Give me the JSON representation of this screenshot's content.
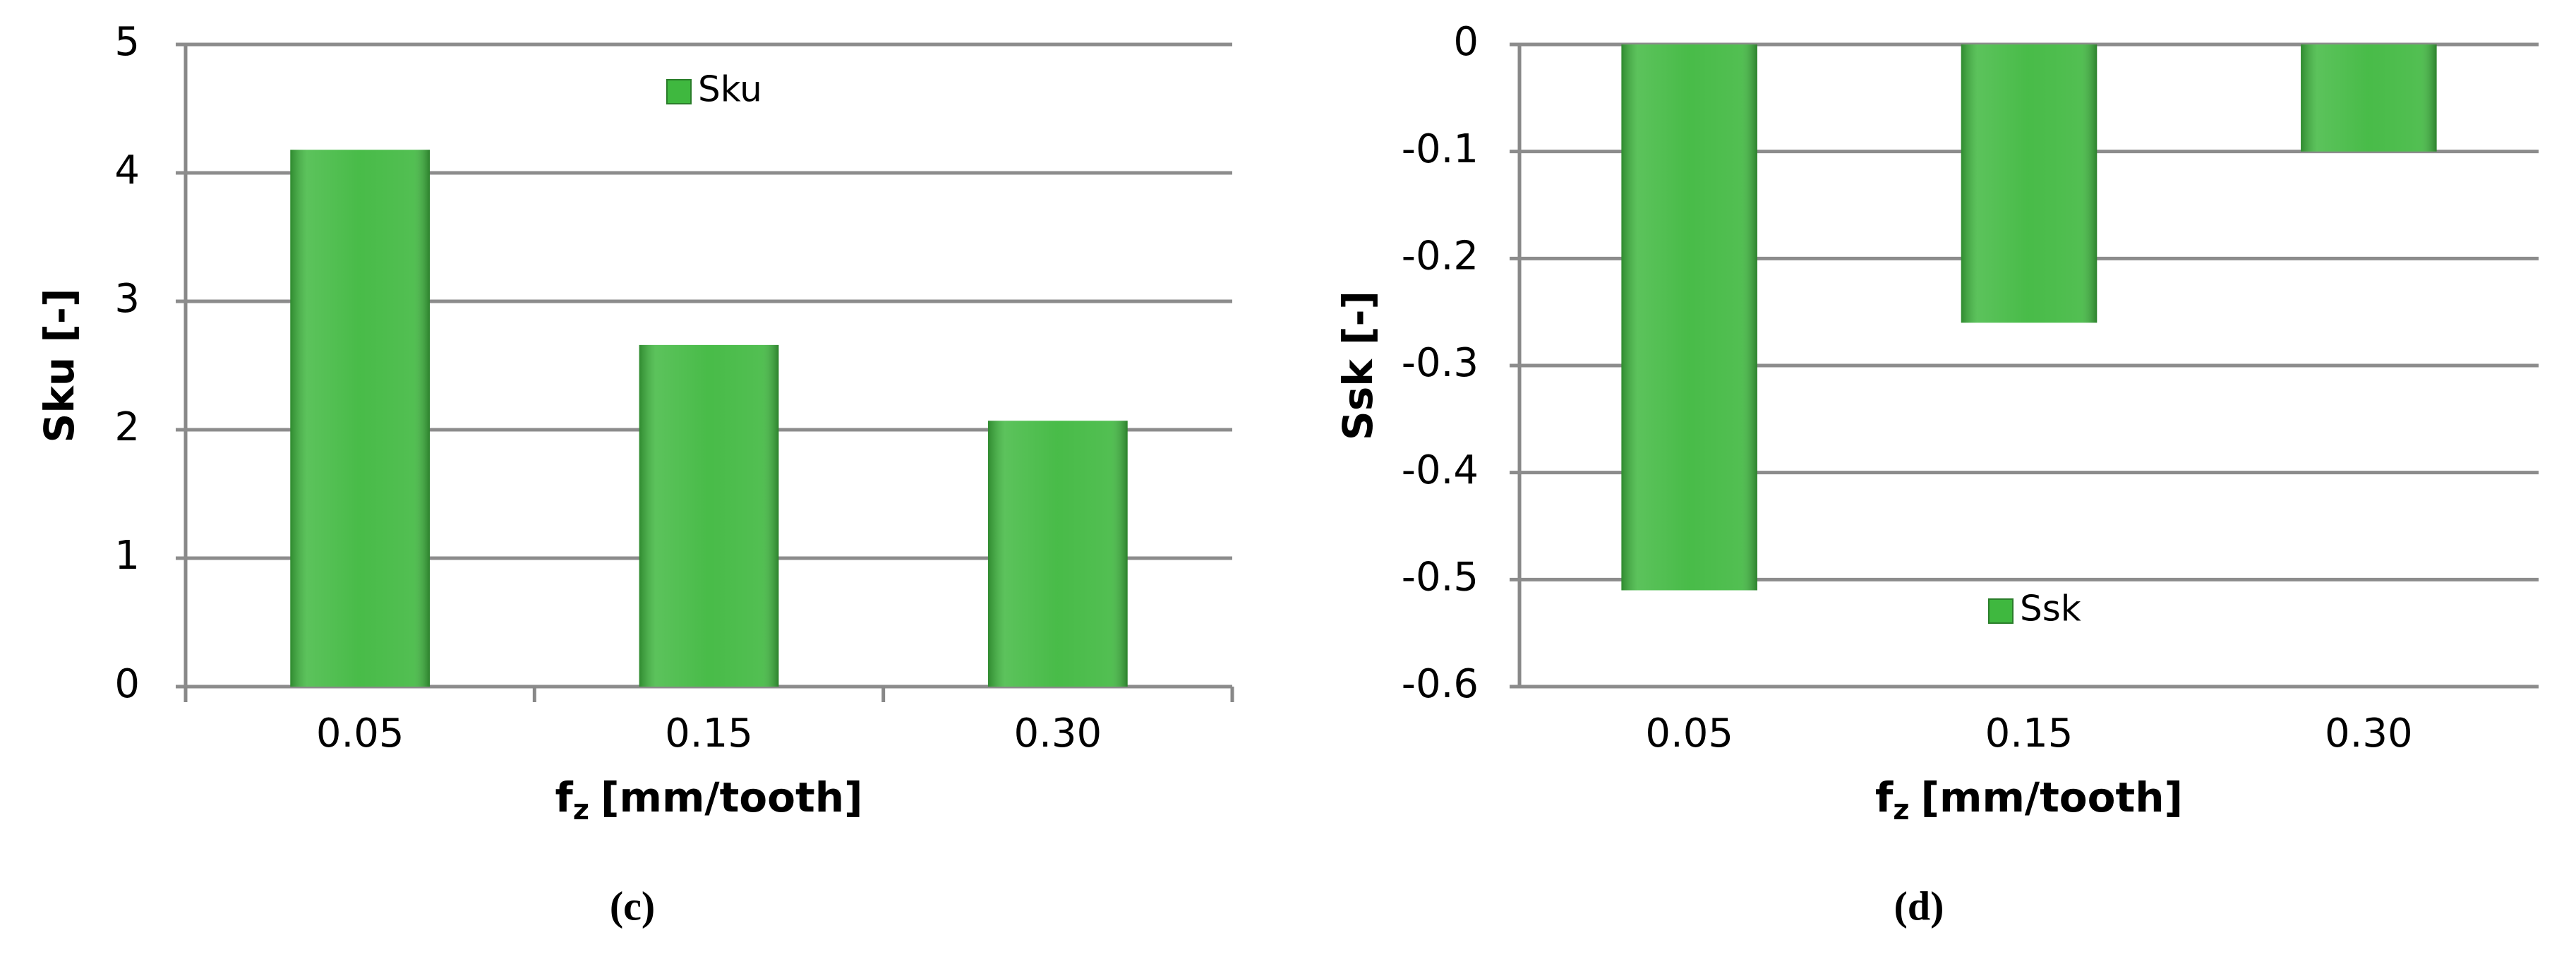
{
  "chart_data": [
    {
      "type": "bar",
      "label": "(c)",
      "y_label": "Sku [-]",
      "x_label": {
        "base": "f",
        "subscript": "z",
        "rest": "[mm/tooth]"
      },
      "categories": [
        "0.05",
        "0.15",
        "0.30"
      ],
      "series": [
        {
          "name": "Sku",
          "color": "#3fb83f",
          "values": [
            4.18,
            2.66,
            2.07
          ]
        }
      ],
      "ylim": [
        0,
        5
      ],
      "yticks": [
        0,
        1,
        2,
        3,
        4,
        5
      ],
      "grid": true
    },
    {
      "type": "bar",
      "label": "(d)",
      "y_label": "Ssk [-]",
      "x_label": {
        "base": "f",
        "subscript": "z",
        "rest": "[mm/tooth]"
      },
      "categories": [
        "0.05",
        "0.15",
        "0.30"
      ],
      "series": [
        {
          "name": "Ssk",
          "color": "#3fb83f",
          "values": [
            -0.51,
            -0.26,
            -0.1
          ]
        }
      ],
      "ylim": [
        -0.6,
        0
      ],
      "yticks": [
        -0.6,
        -0.5,
        -0.4,
        -0.3,
        -0.2,
        -0.1,
        0
      ],
      "grid": true
    }
  ]
}
